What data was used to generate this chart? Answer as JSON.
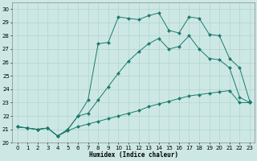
{
  "xlabel": "Humidex (Indice chaleur)",
  "bg_color": "#cde8e4",
  "grid_color": "#b0d4ce",
  "line_color": "#1a7a6e",
  "xlim": [
    -0.5,
    23.5
  ],
  "ylim": [
    20,
    30.5
  ],
  "xticks": [
    0,
    1,
    2,
    3,
    4,
    5,
    6,
    7,
    8,
    9,
    10,
    11,
    12,
    13,
    14,
    15,
    16,
    17,
    18,
    19,
    20,
    21,
    22,
    23
  ],
  "yticks": [
    20,
    21,
    22,
    23,
    24,
    25,
    26,
    27,
    28,
    29,
    30
  ],
  "series_min": [
    21.2,
    21.1,
    21.0,
    21.1,
    20.5,
    20.9,
    21.2,
    21.4,
    21.6,
    21.8,
    22.0,
    22.2,
    22.4,
    22.7,
    22.9,
    23.1,
    23.3,
    23.5,
    23.6,
    23.7,
    23.8,
    23.9,
    23.0,
    23.0
  ],
  "series_mid": [
    21.2,
    21.1,
    21.0,
    21.1,
    20.5,
    21.0,
    22.0,
    22.2,
    23.2,
    24.2,
    25.2,
    26.1,
    26.8,
    27.4,
    27.8,
    27.0,
    27.2,
    28.0,
    27.0,
    26.3,
    26.2,
    25.6,
    23.4,
    23.0
  ],
  "series_max": [
    21.2,
    21.1,
    21.0,
    21.1,
    20.5,
    21.0,
    22.0,
    23.2,
    27.4,
    27.5,
    29.4,
    29.3,
    29.2,
    29.5,
    29.7,
    28.4,
    28.2,
    29.4,
    29.3,
    28.1,
    28.0,
    26.3,
    25.6,
    23.1
  ],
  "markersize": 2.2
}
